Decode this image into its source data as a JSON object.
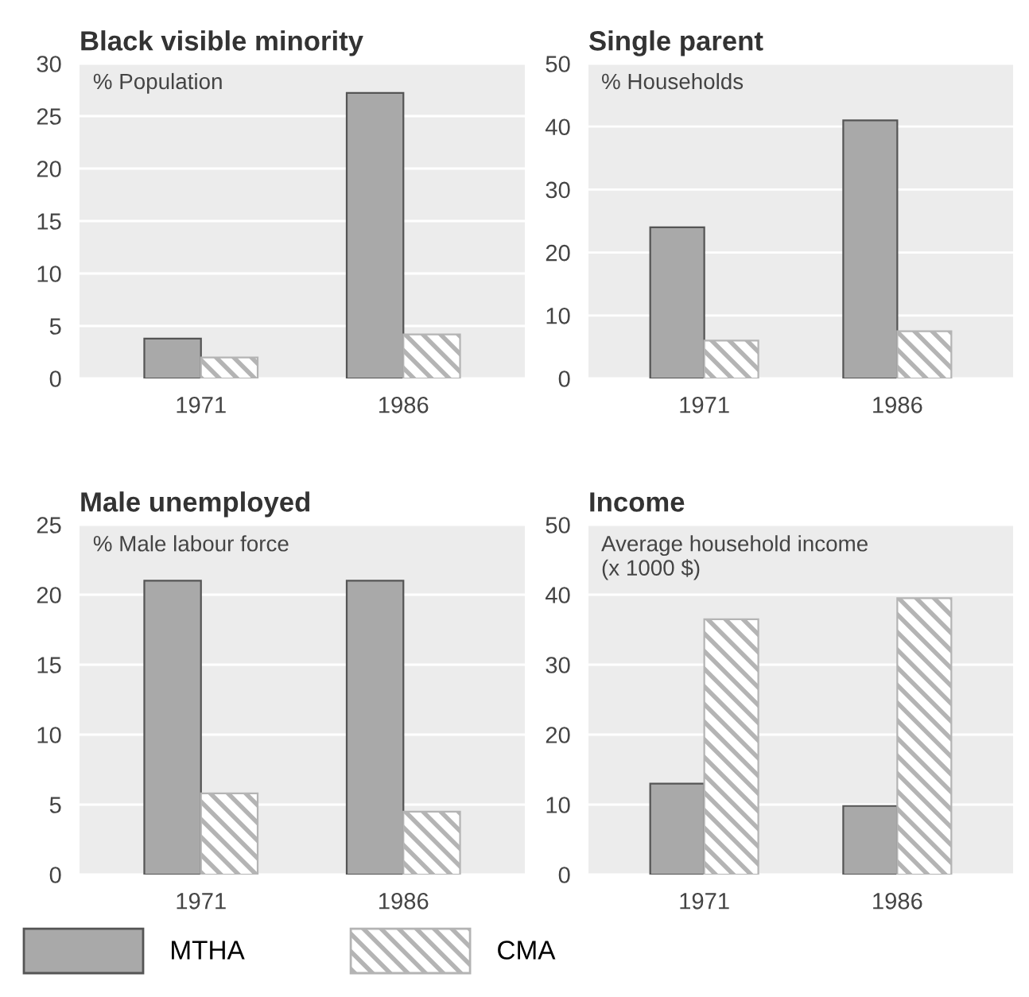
{
  "chart_data": [
    {
      "type": "bar",
      "title": "Black visible minority",
      "ylabel": "% Population",
      "categories": [
        "1971",
        "1986"
      ],
      "ylim": [
        0,
        30
      ],
      "yticks": [
        0,
        5,
        10,
        15,
        20,
        25,
        30
      ],
      "grid": "y",
      "legend": "bottom",
      "series": [
        {
          "name": "MTHA",
          "color": "#a9a9a9",
          "values": [
            3.8,
            27.2
          ]
        },
        {
          "name": "CMA",
          "color": "#b4b4b4",
          "values": [
            2.0,
            4.2
          ]
        }
      ]
    },
    {
      "type": "bar",
      "title": "Single parent",
      "ylabel": "% Households",
      "categories": [
        "1971",
        "1986"
      ],
      "ylim": [
        0,
        50
      ],
      "yticks": [
        0,
        10,
        20,
        30,
        40,
        50
      ],
      "grid": "y",
      "series": [
        {
          "color": "#a9a9a9",
          "values": [
            24,
            41
          ]
        },
        {
          "color": "#b4b4b4",
          "values": [
            6,
            7.5
          ]
        }
      ]
    },
    {
      "type": "bar",
      "title": "Male unemployed",
      "ylabel": "% Male labour force",
      "categories": [
        "1971",
        "1986"
      ],
      "ylim": [
        0,
        25
      ],
      "yticks": [
        0,
        5,
        10,
        15,
        20,
        25
      ],
      "grid": "y",
      "series": [
        {
          "color": "#a9a9a9",
          "values": [
            21,
            21
          ]
        },
        {
          "color": "#b4b4b4",
          "values": [
            5.8,
            4.5
          ]
        }
      ]
    },
    {
      "type": "bar",
      "title": "Income",
      "ylabel": "Average household income\n(x 1000 $)",
      "categories": [
        "1971",
        "1986"
      ],
      "ylim": [
        0,
        50
      ],
      "yticks": [
        0,
        10,
        20,
        30,
        40,
        50
      ],
      "grid": "y",
      "series": [
        {
          "color": "#a9a9a9",
          "values": [
            13,
            9.8
          ]
        },
        {
          "color": "#b4b4b4",
          "values": [
            36.5,
            39.5
          ]
        }
      ]
    }
  ]
}
